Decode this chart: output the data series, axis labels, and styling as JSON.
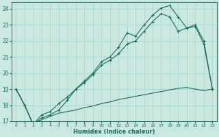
{
  "xlabel": "Humidex (Indice chaleur)",
  "bg_color": "#c8e8e0",
  "grid_color": "#a8d0c8",
  "line_color": "#1a6b5e",
  "xticks": [
    0,
    1,
    2,
    3,
    4,
    5,
    6,
    7,
    8,
    9,
    10,
    11,
    12,
    13,
    14,
    15,
    16,
    17,
    18,
    19,
    20,
    21,
    22,
    23
  ],
  "yticks": [
    17,
    18,
    19,
    20,
    21,
    22,
    23,
    24
  ],
  "line1_x": [
    0,
    1,
    2,
    3,
    4,
    5,
    6,
    7,
    8,
    9,
    10,
    11,
    12,
    13,
    14,
    15,
    16,
    17,
    18,
    19,
    20,
    21,
    22,
    23
  ],
  "line1_y": [
    19.0,
    18.0,
    16.8,
    17.4,
    17.6,
    18.1,
    18.5,
    19.0,
    19.5,
    20.0,
    20.7,
    21.0,
    21.6,
    22.5,
    22.3,
    23.0,
    23.6,
    24.05,
    24.2,
    23.5,
    22.8,
    23.0,
    22.0,
    19.0
  ],
  "line2_x": [
    0,
    1,
    2,
    3,
    4,
    5,
    6,
    7,
    8,
    9,
    10,
    11,
    12,
    13,
    14,
    15,
    16,
    17,
    18,
    19,
    20,
    21,
    22,
    23
  ],
  "line2_y": [
    19.0,
    18.0,
    16.8,
    17.2,
    17.4,
    17.7,
    18.3,
    19.0,
    19.4,
    19.9,
    20.5,
    20.8,
    21.2,
    21.8,
    22.0,
    22.6,
    23.2,
    23.7,
    23.5,
    22.6,
    22.8,
    22.9,
    21.8,
    19.0
  ],
  "line3_x": [
    0,
    1,
    2,
    3,
    4,
    5,
    6,
    7,
    8,
    9,
    10,
    11,
    12,
    13,
    14,
    15,
    16,
    17,
    18,
    19,
    20,
    21,
    22,
    23
  ],
  "line3_y": [
    19.0,
    18.0,
    16.8,
    17.1,
    17.3,
    17.5,
    17.6,
    17.7,
    17.85,
    17.95,
    18.1,
    18.2,
    18.35,
    18.45,
    18.55,
    18.65,
    18.75,
    18.85,
    18.95,
    19.05,
    19.1,
    19.0,
    18.9,
    19.0
  ]
}
